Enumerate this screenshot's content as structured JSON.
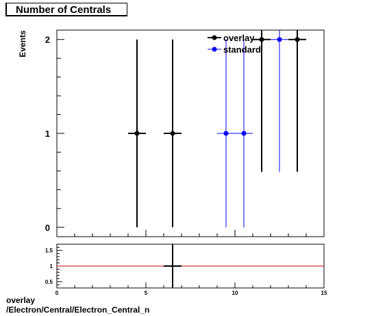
{
  "title": "Number of Centrals",
  "footer": {
    "line1": "overlay",
    "line2": "/Electron/Central/Electron_Central_n"
  },
  "colors": {
    "overlay": "#000000",
    "standard": "#0000ff",
    "ratio_line": "#cc0000"
  },
  "chart_data": [
    {
      "type": "scatter",
      "title": "Number of Centrals",
      "xlabel": "",
      "ylabel": "Events",
      "xlim": [
        0,
        15
      ],
      "ylim": [
        -0.1,
        2.1
      ],
      "yticks": [
        "0",
        "1",
        "2"
      ],
      "legend": {
        "placement": "top-right",
        "entries": [
          "overlay",
          "standard"
        ]
      },
      "series": [
        {
          "name": "overlay",
          "color": "#000000",
          "points": [
            {
              "x": 4.5,
              "y": 1,
              "xerr": 0.5,
              "yerr": 1.0
            },
            {
              "x": 6.5,
              "y": 1,
              "xerr": 0.5,
              "yerr": 1.0
            },
            {
              "x": 11.5,
              "y": 2,
              "xerr": 0.5,
              "yerr": 1.41
            },
            {
              "x": 13.5,
              "y": 2,
              "xerr": 0.5,
              "yerr": 1.41
            }
          ]
        },
        {
          "name": "standard",
          "color": "#0000ff",
          "points": [
            {
              "x": 9.5,
              "y": 1,
              "xerr": 0.5,
              "yerr": 1.0
            },
            {
              "x": 10.5,
              "y": 1,
              "xerr": 0.5,
              "yerr": 1.0
            },
            {
              "x": 12.5,
              "y": 2,
              "xerr": 0.5,
              "yerr": 1.41
            }
          ]
        }
      ]
    },
    {
      "type": "scatter",
      "title": "",
      "xlabel": "",
      "ylabel": "",
      "xlim": [
        0,
        15
      ],
      "ylim": [
        0.3,
        1.7
      ],
      "xticks": [
        "0",
        "5",
        "10",
        "15"
      ],
      "yticks": [
        "0.5",
        "1",
        "1.5"
      ],
      "reference_line": 1,
      "series": [
        {
          "name": "",
          "color": "#000000",
          "points": [
            {
              "x": 6.5,
              "y": 1,
              "xerr": 0.5,
              "yerr": 1.0
            }
          ]
        }
      ]
    }
  ]
}
